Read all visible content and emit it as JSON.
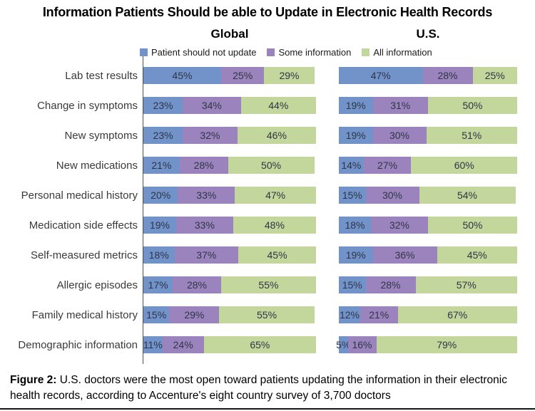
{
  "title": "Information Patients Should be able to Update in Electronic Health Records",
  "legend": [
    {
      "label": "Patient should not update",
      "color": "#7292CA"
    },
    {
      "label": "Some information",
      "color": "#9B84BE"
    },
    {
      "label": "All information",
      "color": "#C3D69B"
    }
  ],
  "chart_data": {
    "type": "bar",
    "orientation": "horizontal",
    "stacked": true,
    "unit": "%",
    "xlim": [
      0,
      100
    ],
    "grid": false,
    "legend_position": "top",
    "categories": [
      "Lab test results",
      "Change in symptoms",
      "New symptoms",
      "New medications",
      "Personal medical history",
      "Medication side effects",
      "Self-measured metrics",
      "Allergic episodes",
      "Family medical history",
      "Demographic information"
    ],
    "series_labels": [
      "Patient should not update",
      "Some information",
      "All information"
    ],
    "panels": [
      {
        "name": "Global",
        "rows": [
          [
            45,
            25,
            29
          ],
          [
            23,
            34,
            44
          ],
          [
            23,
            32,
            46
          ],
          [
            21,
            28,
            50
          ],
          [
            20,
            33,
            47
          ],
          [
            19,
            33,
            48
          ],
          [
            18,
            37,
            45
          ],
          [
            17,
            28,
            55
          ],
          [
            15,
            29,
            55
          ],
          [
            11,
            24,
            65
          ]
        ]
      },
      {
        "name": "U.S.",
        "rows": [
          [
            47,
            28,
            25
          ],
          [
            19,
            31,
            50
          ],
          [
            19,
            30,
            51
          ],
          [
            14,
            27,
            60
          ],
          [
            15,
            30,
            54
          ],
          [
            18,
            32,
            50
          ],
          [
            19,
            36,
            45
          ],
          [
            15,
            28,
            57
          ],
          [
            12,
            21,
            67
          ],
          [
            5,
            16,
            79
          ]
        ]
      }
    ]
  },
  "caption": {
    "label": "Figure 2:",
    "text": "U.S. doctors were the most open toward patients updating the information in their electronic health records, according to Accenture's eight country survey of 3,700 doctors"
  }
}
